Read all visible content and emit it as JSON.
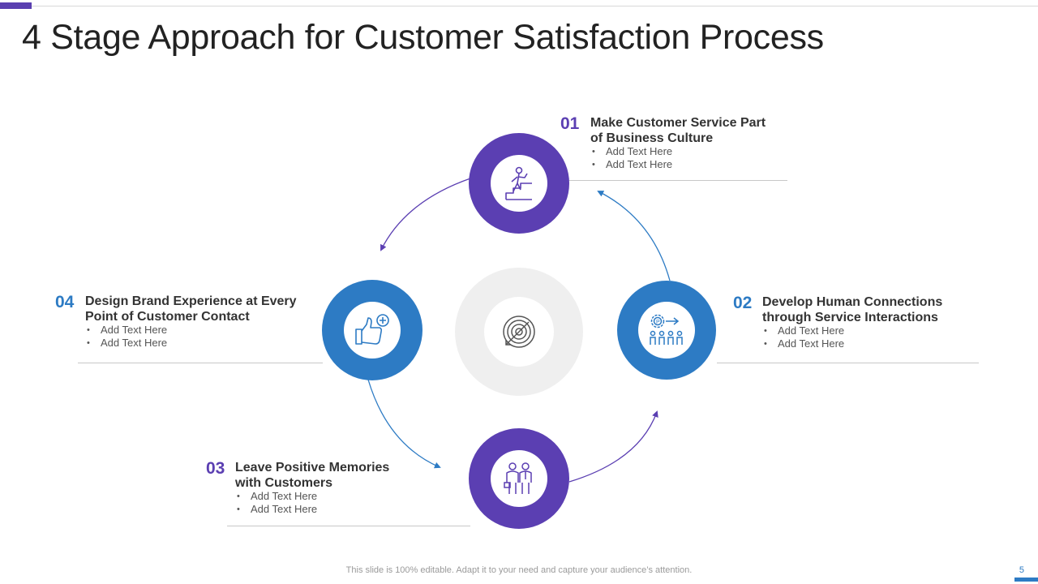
{
  "slide": {
    "title": "4 Stage Approach for Customer Satisfaction Process",
    "footer": "This slide is 100% editable. Adapt it to your need and capture your audience’s attention.",
    "page_number": "5"
  },
  "colors": {
    "purple": "#5b3fb2",
    "blue": "#2d7bc4",
    "center_ring": "#efefef"
  },
  "center_icon": "target-icon",
  "stages": [
    {
      "number": "01",
      "title_line1": "Make Customer Service Part",
      "title_line2": "of Business Culture",
      "bullets": [
        "Add Text Here",
        "Add Text Here"
      ],
      "icon": "person-climbing-stairs-icon",
      "color": "purple"
    },
    {
      "number": "02",
      "title_line1": "Develop Human Connections",
      "title_line2": "through Service Interactions",
      "bullets": [
        "Add Text Here",
        "Add Text Here"
      ],
      "icon": "gear-team-icon",
      "color": "blue"
    },
    {
      "number": "03",
      "title_line1": "Leave Positive Memories",
      "title_line2": "with Customers",
      "bullets": [
        "Add Text Here",
        "Add Text Here"
      ],
      "icon": "two-people-icon",
      "color": "purple"
    },
    {
      "number": "04",
      "title_line1": "Design Brand Experience at Every",
      "title_line2": "Point of Customer Contact",
      "bullets": [
        "Add Text Here",
        "Add Text Here"
      ],
      "icon": "thumbs-up-plus-icon",
      "color": "blue"
    }
  ]
}
